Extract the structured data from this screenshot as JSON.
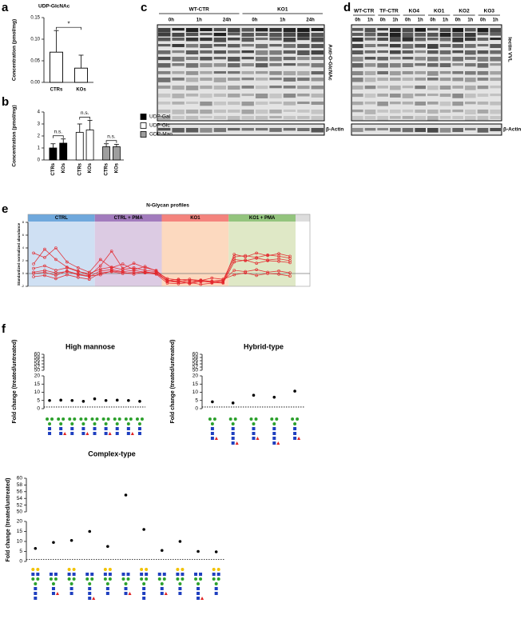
{
  "chart_data": [
    {
      "letter": "a",
      "type": "bar",
      "title": "UDP-GlcNAc",
      "ylabel": "Concentration (pmol/mg)",
      "categories": [
        "CTRs",
        "KOs"
      ],
      "values": [
        0.07,
        0.033
      ],
      "errors": [
        0.05,
        0.03
      ],
      "color": "#ffffff",
      "ylim": [
        0,
        0.15
      ],
      "yticks": [
        {
          "value": 0,
          "label": "0.00"
        },
        {
          "value": 0.05,
          "label": "0.05"
        },
        {
          "value": 0.1,
          "label": "0.10"
        },
        {
          "value": 0.15,
          "label": "0.15"
        }
      ],
      "annotation": "*"
    },
    {
      "letter": "b",
      "type": "bar",
      "ylabel": "Concentration (pmol/mg)",
      "categories": [
        "CTRs",
        "KOs"
      ],
      "series": [
        {
          "name": "UDP-Gal",
          "color": "#000000",
          "values": [
            1.0,
            1.4
          ],
          "errors": [
            0.35,
            0.35
          ]
        },
        {
          "name": "UDP-Glc",
          "color": "#ffffff",
          "values": [
            2.3,
            2.5
          ],
          "errors": [
            0.7,
            0.8
          ]
        },
        {
          "name": "GDP-Man",
          "color": "#9e9e9e",
          "values": [
            1.1,
            1.1
          ],
          "errors": [
            0.25,
            0.2
          ]
        }
      ],
      "ylim": [
        0,
        4
      ],
      "yticks": [
        0,
        1,
        2,
        3,
        4
      ],
      "annotations": [
        "n.s.",
        "n.s.",
        "n.s."
      ]
    },
    {
      "letter": "e",
      "type": "line",
      "title": "N-Glycan profiles",
      "ylabel": "Standardized normalized abundance",
      "groups": [
        "CTRL",
        "CTRL + PMA",
        "KO1",
        "KO1 + PMA"
      ],
      "group_colors": [
        "#cfe0f3",
        "#dccbe3",
        "#fcd9bf",
        "#dfe8c6"
      ],
      "header_colors": [
        "#6fa8dc",
        "#a27bbd",
        "#f4837d",
        "#93c47d"
      ],
      "color": "#e3262b",
      "series": [
        {
          "values": [
            [
              0.2,
              0.5,
              0.1,
              0.3,
              -0.2,
              -0.5
            ],
            [
              0.4,
              0.6,
              0.3,
              0.5,
              0.2,
              0.1
            ],
            [
              -1.2,
              -1.4,
              -1.1,
              -1.3,
              -1.2,
              -1.0
            ],
            [
              2.6,
              2.8,
              2.5,
              2.9,
              2.7,
              2.4
            ]
          ]
        },
        {
          "values": [
            [
              1.5,
              3.8,
              2.2,
              1.0,
              0.4,
              -0.3
            ],
            [
              1.2,
              3.5,
              0.8,
              1.6,
              0.9,
              0.5
            ],
            [
              -1.0,
              -1.3,
              -1.5,
              -1.1,
              -1.2,
              -1.4
            ],
            [
              3.0,
              2.6,
              3.2,
              2.8,
              3.1,
              2.7
            ]
          ]
        },
        {
          "values": [
            [
              -0.5,
              -0.3,
              -0.8,
              -0.2,
              -0.6,
              -0.9
            ],
            [
              0.1,
              0.3,
              0.0,
              0.2,
              0.1,
              -0.1
            ],
            [
              -1.5,
              -1.6,
              -1.4,
              -1.7,
              -1.5,
              -1.3
            ],
            [
              2.2,
              2.0,
              2.4,
              2.1,
              2.3,
              2.0
            ]
          ]
        },
        {
          "values": [
            [
              0.8,
              1.2,
              0.5,
              0.9,
              0.3,
              0.0
            ],
            [
              0.7,
              1.0,
              0.6,
              0.9,
              0.5,
              0.3
            ],
            [
              -0.8,
              -1.0,
              -0.9,
              -1.1,
              -0.7,
              -0.9
            ],
            [
              -0.2,
              0.1,
              -0.3,
              0.0,
              -0.1,
              -0.4
            ]
          ]
        },
        {
          "values": [
            [
              3.2,
              2.5,
              4.0,
              1.8,
              0.9,
              0.2
            ],
            [
              2.2,
              0.9,
              1.5,
              0.6,
              1.1,
              0.4
            ],
            [
              -1.3,
              -1.1,
              -1.6,
              -1.2,
              -1.4,
              -1.5
            ],
            [
              1.8,
              2.1,
              1.6,
              2.0,
              1.9,
              1.7
            ]
          ]
        },
        {
          "values": [
            [
              0.0,
              0.2,
              -0.3,
              0.4,
              -0.1,
              -0.4
            ],
            [
              -0.2,
              0.4,
              0.2,
              -0.1,
              0.3,
              0.0
            ],
            [
              -1.1,
              -0.9,
              -1.2,
              -1.0,
              -1.3,
              -1.1
            ],
            [
              0.5,
              0.3,
              0.6,
              0.2,
              0.4,
              0.1
            ]
          ]
        }
      ],
      "ylim": [
        -2,
        8
      ],
      "yticks": [
        -2,
        0,
        2,
        4,
        6,
        8
      ],
      "reference_line": 0
    },
    {
      "letter": "f",
      "type": "scatter",
      "title": "High mannose",
      "ylabel": "Fold change (treated/untreated)",
      "values": [
        5.0,
        5.2,
        5.0,
        4.5,
        6.0,
        5.0,
        5.2,
        5.0,
        4.5
      ],
      "ylim": [
        0,
        60
      ],
      "ybreak": [
        20,
        50
      ],
      "yticks": [
        0,
        5,
        10,
        15,
        20,
        50,
        52,
        54,
        56,
        58,
        60
      ],
      "reference_line": 1
    },
    {
      "type": "scatter",
      "title": "Hybrid-type",
      "ylabel": "Fold change (treated/untreated)",
      "values": [
        4.2,
        3.5,
        8.2,
        7.0,
        10.7
      ],
      "ylim": [
        0,
        60
      ],
      "ybreak": [
        20,
        50
      ],
      "yticks": [
        0,
        5,
        10,
        15,
        20,
        50,
        52,
        54,
        56,
        58,
        60
      ],
      "reference_line": 1
    },
    {
      "type": "scatter",
      "title": "Complex-type",
      "ylabel": "Fold change (treated/untreated)",
      "values": [
        6.5,
        9.5,
        10.5,
        15.0,
        7.5,
        55.0,
        16.0,
        5.5,
        10.0,
        5.0,
        4.8
      ],
      "ylim": [
        0,
        60
      ],
      "ybreak": [
        20,
        50
      ],
      "yticks": [
        0,
        5,
        10,
        15,
        20,
        50,
        52,
        54,
        56,
        58,
        60
      ],
      "reference_line": 1
    }
  ],
  "blots": [
    {
      "letter": "c",
      "groups": [
        "WT-CTR",
        "KO1"
      ],
      "times": [
        [
          "0h",
          "1h",
          "24h"
        ],
        [
          "0h",
          "1h",
          "24h"
        ]
      ],
      "labels": [
        "Anti-O-GlcNAc",
        "β-Actin"
      ]
    },
    {
      "letter": "d",
      "groups": [
        "WT-CTR",
        "TF-CTR",
        "KO4",
        "KO1",
        "KO2",
        "KO3"
      ],
      "times": [
        [
          "0h",
          "1h"
        ],
        [
          "0h",
          "1h"
        ],
        [
          "0h",
          "1h"
        ],
        [
          "0h",
          "1h"
        ],
        [
          "0h",
          "1h"
        ],
        [
          "0h",
          "1h"
        ]
      ],
      "labels": [
        "lectin VVL",
        "β-Actin"
      ]
    }
  ]
}
